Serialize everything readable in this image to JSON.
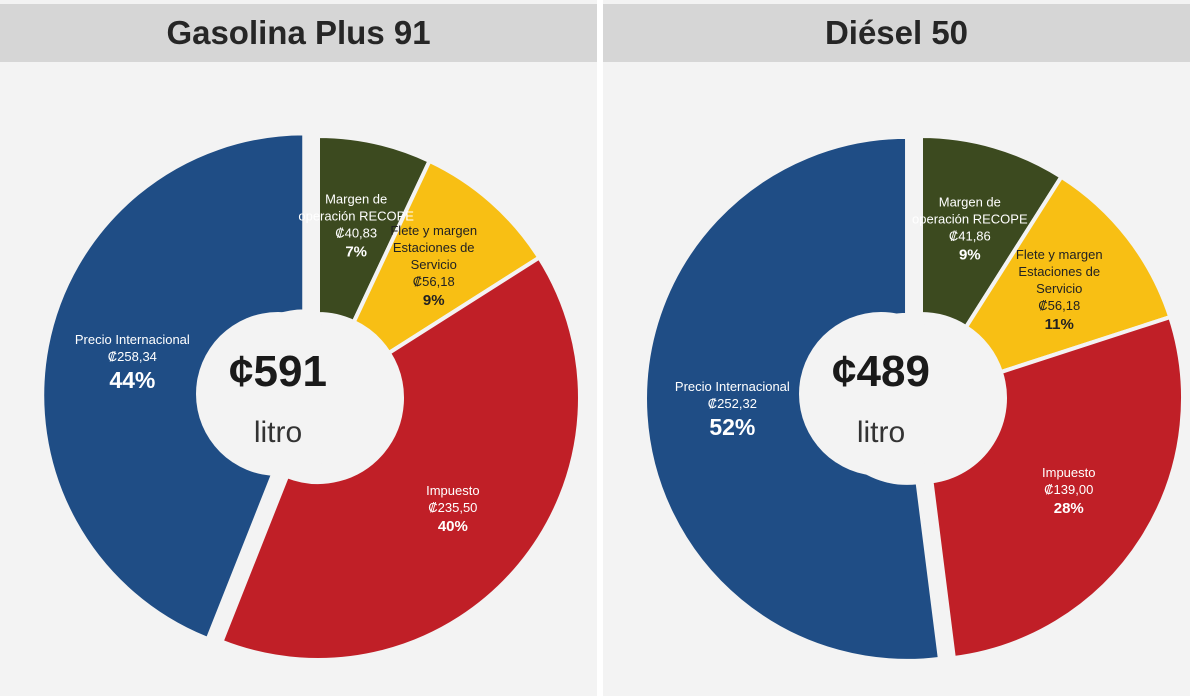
{
  "chart_data": [
    {
      "type": "pie",
      "title": "Gasolina Plus 91",
      "center_label": "¢591",
      "center_sublabel": "litro",
      "categories": [
        "Margen de operación RECOPE",
        "Flete y margen Estaciones de Servicio",
        "Impuesto",
        "Precio Internacional"
      ],
      "amount_labels": [
        "₡40,83",
        "₡56,18",
        "₡235,50",
        "₡258,34"
      ],
      "values": [
        7,
        9,
        40,
        44
      ],
      "value_labels": [
        "7%",
        "9%",
        "40%",
        "44%"
      ],
      "colors": [
        "#3c4a1f",
        "#f8bf14",
        "#c01f27",
        "#1f4d85"
      ]
    },
    {
      "type": "pie",
      "title": "Diésel 50",
      "center_label": "¢489",
      "center_sublabel": "litro",
      "categories": [
        "Margen de operación RECOPE",
        "Flete y margen Estaciones de Servicio",
        "Impuesto",
        "Precio Internacional"
      ],
      "amount_labels": [
        "₡41,86",
        "₡56,18",
        "₡139,00",
        "₡252,32"
      ],
      "values": [
        9,
        11,
        28,
        52
      ],
      "value_labels": [
        "9%",
        "11%",
        "28%",
        "52%"
      ],
      "colors": [
        "#3c4a1f",
        "#f8bf14",
        "#c01f27",
        "#1f4d85"
      ]
    }
  ]
}
